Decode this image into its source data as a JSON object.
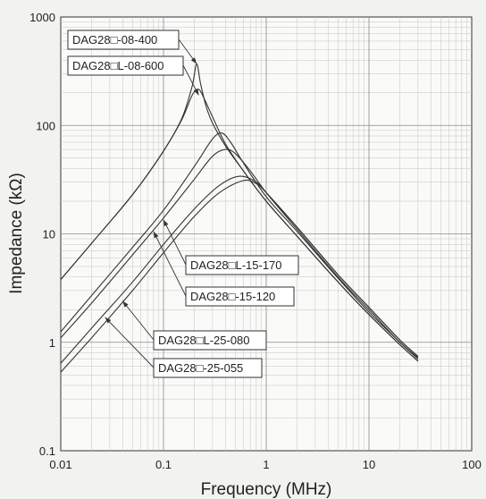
{
  "chart_data": {
    "type": "line",
    "title": "",
    "xlabel": "Frequency (MHz)",
    "ylabel": "Impedance (kΩ)",
    "xscale": "log",
    "yscale": "log",
    "xlim": [
      0.01,
      100
    ],
    "ylim": [
      0.1,
      1000
    ],
    "grid": true,
    "x_ticks": [
      "0.01",
      "0.1",
      "1",
      "10",
      "100"
    ],
    "y_ticks": [
      "0.1",
      "1",
      "10",
      "100",
      "1000"
    ],
    "series": [
      {
        "name": "DAG28□-08-400",
        "x": [
          0.01,
          0.02,
          0.05,
          0.1,
          0.15,
          0.19,
          0.21,
          0.23,
          0.26,
          0.3,
          0.4,
          0.6,
          1,
          2,
          5,
          10,
          20,
          30
        ],
        "y": [
          3.8,
          8.2,
          23,
          58,
          115,
          230,
          370,
          240,
          150,
          105,
          65,
          38,
          20,
          9.5,
          3.6,
          1.8,
          0.95,
          0.67
        ]
      },
      {
        "name": "DAG28□L-08-600",
        "x": [
          0.01,
          0.02,
          0.05,
          0.1,
          0.15,
          0.19,
          0.22,
          0.25,
          0.3,
          0.4,
          0.6,
          1,
          2,
          5,
          10,
          20,
          30
        ],
        "y": [
          3.8,
          8.2,
          23,
          58,
          112,
          190,
          215,
          175,
          120,
          68,
          38,
          20,
          9.5,
          3.6,
          1.8,
          0.95,
          0.67
        ]
      },
      {
        "name": "DAG28□L-15-170",
        "x": [
          0.01,
          0.02,
          0.05,
          0.1,
          0.2,
          0.3,
          0.37,
          0.45,
          0.6,
          1,
          2,
          5,
          10,
          20,
          30
        ],
        "y": [
          1.25,
          2.7,
          7.5,
          16.5,
          42,
          75,
          85,
          70,
          45,
          22,
          10.5,
          3.9,
          1.9,
          1.0,
          0.7
        ]
      },
      {
        "name": "DAG28□-15-120",
        "x": [
          0.01,
          0.02,
          0.05,
          0.1,
          0.2,
          0.3,
          0.4,
          0.5,
          0.7,
          1,
          2,
          5,
          10,
          20,
          30
        ],
        "y": [
          1.1,
          2.3,
          6.4,
          14,
          32,
          52,
          60,
          55,
          38,
          24,
          11,
          4.0,
          2.0,
          1.0,
          0.72
        ]
      },
      {
        "name": "DAG28□L-25-080",
        "x": [
          0.01,
          0.02,
          0.05,
          0.1,
          0.2,
          0.35,
          0.55,
          0.8,
          1,
          2,
          5,
          10,
          20,
          30
        ],
        "y": [
          0.64,
          1.35,
          3.6,
          8.0,
          17,
          28,
          34,
          30,
          24,
          11.5,
          4.2,
          2.1,
          1.05,
          0.74
        ]
      },
      {
        "name": "DAG28□-25-055",
        "x": [
          0.01,
          0.02,
          0.05,
          0.1,
          0.2,
          0.35,
          0.6,
          0.8,
          1,
          2,
          5,
          10,
          20,
          30
        ],
        "y": [
          0.53,
          1.1,
          3.0,
          6.7,
          14.5,
          24,
          31,
          29,
          24,
          11.5,
          4.2,
          2.1,
          1.05,
          0.74
        ]
      }
    ],
    "legend": [
      {
        "label": "DAG28□-08-400",
        "series": 0,
        "arrow_at": [
          0.21,
          370
        ]
      },
      {
        "label": "DAG28□L-08-600",
        "series": 1,
        "arrow_at": [
          0.22,
          190
        ]
      },
      {
        "label": "DAG28□L-15-170",
        "series": 2,
        "arrow_at": [
          0.1,
          13.5
        ]
      },
      {
        "label": "DAG28□-15-120",
        "series": 3,
        "arrow_at": [
          0.08,
          10.5
        ]
      },
      {
        "label": "DAG28□L-25-080",
        "series": 4,
        "arrow_at": [
          0.04,
          2.4
        ]
      },
      {
        "label": "DAG28□-25-055",
        "series": 5,
        "arrow_at": [
          0.027,
          1.7
        ]
      }
    ]
  },
  "colors": {
    "curve": "#333333",
    "background": "#f2f2f0",
    "major_grid": "#8a8a8a",
    "minor_grid": "#c4c4c4"
  }
}
